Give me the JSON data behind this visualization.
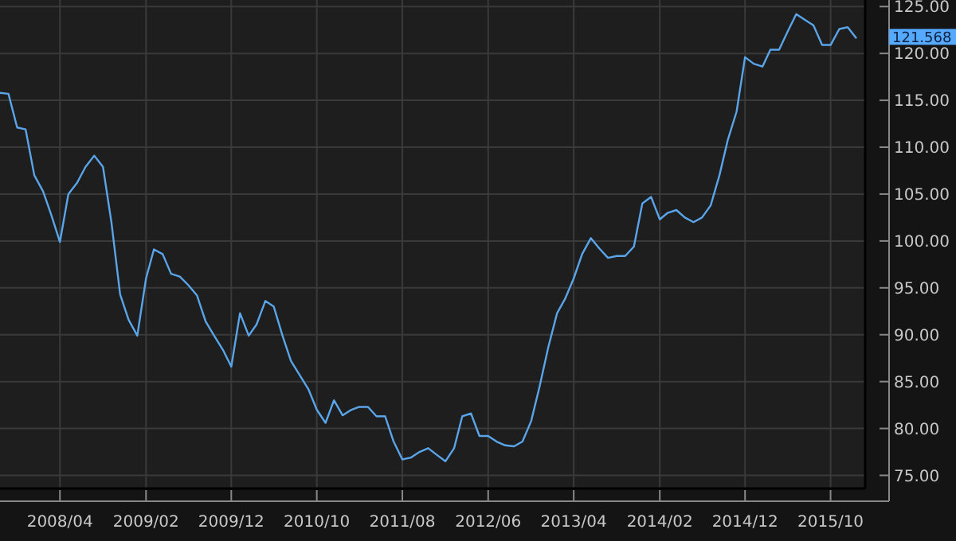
{
  "chart_data": {
    "type": "line",
    "x": [
      "2007-09",
      "2007-10",
      "2007-11",
      "2007-12",
      "2008-01",
      "2008-02",
      "2008-03",
      "2008-04",
      "2008-05",
      "2008-06",
      "2008-07",
      "2008-08",
      "2008-09",
      "2008-10",
      "2008-11",
      "2008-12",
      "2009-01",
      "2009-02",
      "2009-03",
      "2009-04",
      "2009-05",
      "2009-06",
      "2009-07",
      "2009-08",
      "2009-09",
      "2009-10",
      "2009-11",
      "2009-12",
      "2010-01",
      "2010-02",
      "2010-03",
      "2010-04",
      "2010-05",
      "2010-06",
      "2010-07",
      "2010-08",
      "2010-09",
      "2010-10",
      "2010-11",
      "2010-12",
      "2011-01",
      "2011-02",
      "2011-03",
      "2011-04",
      "2011-05",
      "2011-06",
      "2011-07",
      "2011-08",
      "2011-09",
      "2011-10",
      "2011-11",
      "2011-12",
      "2012-01",
      "2012-02",
      "2012-03",
      "2012-04",
      "2012-05",
      "2012-06",
      "2012-07",
      "2012-08",
      "2012-09",
      "2012-10",
      "2012-11",
      "2012-12",
      "2013-01",
      "2013-02",
      "2013-03",
      "2013-04",
      "2013-05",
      "2013-06",
      "2013-07",
      "2013-08",
      "2013-09",
      "2013-10",
      "2013-11",
      "2013-12",
      "2014-01",
      "2014-02",
      "2014-03",
      "2014-04",
      "2014-05",
      "2014-06",
      "2014-07",
      "2014-08",
      "2014-09",
      "2014-10",
      "2014-11",
      "2014-12",
      "2015-01",
      "2015-02",
      "2015-03",
      "2015-04",
      "2015-05",
      "2015-06",
      "2015-07",
      "2015-08",
      "2015-09",
      "2015-10",
      "2015-11",
      "2015-12",
      "2016-01"
    ],
    "series": [
      {
        "color": "#5aa5ea",
        "values": [
          115.8,
          115.7,
          112.1,
          111.9,
          107.0,
          105.3,
          102.8,
          99.9,
          105.0,
          106.2,
          107.9,
          109.1,
          107.9,
          102.0,
          94.3,
          91.6,
          89.9,
          96.0,
          99.1,
          98.6,
          96.5,
          96.2,
          95.3,
          94.2,
          91.4,
          89.9,
          88.4,
          86.6,
          92.3,
          89.9,
          91.1,
          93.6,
          93.0,
          89.9,
          87.2,
          85.7,
          84.2,
          82.0,
          80.6,
          83.0,
          81.4,
          82.0,
          82.3,
          82.3,
          81.3,
          81.3,
          78.6,
          76.7,
          76.9,
          77.5,
          77.9,
          77.2,
          76.5,
          77.9,
          81.3,
          81.6,
          79.2,
          79.2,
          78.6,
          78.2,
          78.1,
          78.6,
          80.8,
          84.5,
          88.7,
          92.3,
          93.8,
          96.0,
          98.6,
          100.3,
          99.2,
          98.2,
          98.4,
          98.4,
          99.4,
          104.0,
          104.7,
          102.3,
          103.0,
          103.3,
          102.5,
          102.0,
          102.5,
          103.8,
          107.0,
          110.8,
          113.8,
          119.6,
          118.9,
          118.6,
          120.4,
          120.4,
          122.3,
          124.2,
          123.6,
          123.0,
          120.9,
          120.9,
          122.6,
          122.8,
          121.6
        ]
      }
    ],
    "xlim": [
      "2007-09",
      "2016-02"
    ],
    "xticks": [
      {
        "value": "2008-04",
        "label": "2008/04"
      },
      {
        "value": "2009-02",
        "label": "2009/02"
      },
      {
        "value": "2009-12",
        "label": "2009/12"
      },
      {
        "value": "2010-10",
        "label": "2010/10"
      },
      {
        "value": "2011-08",
        "label": "2011/08"
      },
      {
        "value": "2012-06",
        "label": "2012/06"
      },
      {
        "value": "2013-04",
        "label": "2013/04"
      },
      {
        "value": "2014-02",
        "label": "2014/02"
      },
      {
        "value": "2014-12",
        "label": "2014/12"
      },
      {
        "value": "2015-10",
        "label": "2015/10"
      }
    ],
    "ylim": [
      73.6,
      125.7
    ],
    "yticks": [
      {
        "value": 75,
        "label": "75.00"
      },
      {
        "value": 80,
        "label": "80.00"
      },
      {
        "value": 85,
        "label": "85.00"
      },
      {
        "value": 90,
        "label": "90.00"
      },
      {
        "value": 95,
        "label": "95.00"
      },
      {
        "value": 100,
        "label": "100.00"
      },
      {
        "value": 105,
        "label": "105.00"
      },
      {
        "value": 110,
        "label": "110.00"
      },
      {
        "value": 115,
        "label": "115.00"
      },
      {
        "value": 120,
        "label": "120.00"
      },
      {
        "value": 125,
        "label": "125.00"
      }
    ],
    "grid": true,
    "marker": "none",
    "line_style": "solid",
    "annotations": [
      "121.568"
    ]
  }
}
